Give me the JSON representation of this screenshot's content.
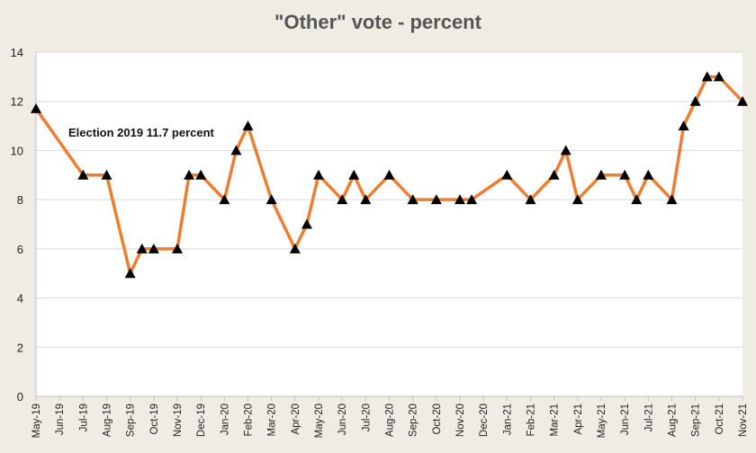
{
  "chart_data": {
    "type": "line",
    "title": "\"Other\" vote - percent",
    "xlabel": "",
    "ylabel": "",
    "ylim": [
      0,
      14
    ],
    "yticks": [
      0,
      2,
      4,
      6,
      8,
      10,
      12,
      14
    ],
    "grid": true,
    "legend": "none",
    "categories": [
      "May-19",
      "Jun-19",
      "Jul-19",
      "Aug-19",
      "Sep-19",
      "Oct-19",
      "Nov-19",
      "Dec-19",
      "Jan-20",
      "Feb-20",
      "Mar-20",
      "Apr-20",
      "May-20",
      "Jun-20",
      "Jul-20",
      "Aug-20",
      "Sep-20",
      "Oct-20",
      "Nov-20",
      "Dec-20",
      "Jan-21",
      "Feb-21",
      "Mar-21",
      "Apr-21",
      "May-21",
      "Jun-21",
      "Jul-21",
      "Aug-21",
      "Sep-21",
      "Oct-21",
      "Nov-21"
    ],
    "series": [
      {
        "color": "#ed7d31",
        "marker_color": "#000000",
        "marker": "triangle",
        "points": [
          {
            "x": "May-19",
            "y": 11.7
          },
          {
            "x": "Jul-19",
            "y": 9
          },
          {
            "x": "Aug-19",
            "y": 9
          },
          {
            "x": "Sep-19",
            "y": 5
          },
          {
            "x": "Sep-19",
            "y": 6
          },
          {
            "x": "Oct-19",
            "y": 6
          },
          {
            "x": "Nov-19",
            "y": 6
          },
          {
            "x": "Nov-19",
            "y": 9
          },
          {
            "x": "Dec-19",
            "y": 9
          },
          {
            "x": "Jan-20",
            "y": 8
          },
          {
            "x": "Jan-20",
            "y": 10
          },
          {
            "x": "Feb-20",
            "y": 11
          },
          {
            "x": "Mar-20",
            "y": 8
          },
          {
            "x": "Apr-20",
            "y": 6
          },
          {
            "x": "Apr-20",
            "y": 7
          },
          {
            "x": "May-20",
            "y": 9
          },
          {
            "x": "Jun-20",
            "y": 8
          },
          {
            "x": "Jun-20",
            "y": 9
          },
          {
            "x": "Jul-20",
            "y": 8
          },
          {
            "x": "Aug-20",
            "y": 9
          },
          {
            "x": "Sep-20",
            "y": 8
          },
          {
            "x": "Oct-20",
            "y": 8
          },
          {
            "x": "Nov-20",
            "y": 8
          },
          {
            "x": "Nov-20",
            "y": 8
          },
          {
            "x": "Jan-21",
            "y": 9
          },
          {
            "x": "Feb-21",
            "y": 8
          },
          {
            "x": "Mar-21",
            "y": 9
          },
          {
            "x": "Mar-21",
            "y": 10
          },
          {
            "x": "Apr-21",
            "y": 8
          },
          {
            "x": "May-21",
            "y": 9
          },
          {
            "x": "Jun-21",
            "y": 9
          },
          {
            "x": "Jun-21",
            "y": 8
          },
          {
            "x": "Jul-21",
            "y": 9
          },
          {
            "x": "Aug-21",
            "y": 8
          },
          {
            "x": "Aug-21",
            "y": 11
          },
          {
            "x": "Sep-21",
            "y": 12
          },
          {
            "x": "Sep-21",
            "y": 13
          },
          {
            "x": "Oct-21",
            "y": 13
          },
          {
            "x": "Nov-21",
            "y": 12
          }
        ]
      }
    ],
    "annotations": [
      {
        "text": "Election 2019 11.7 percent"
      }
    ]
  }
}
